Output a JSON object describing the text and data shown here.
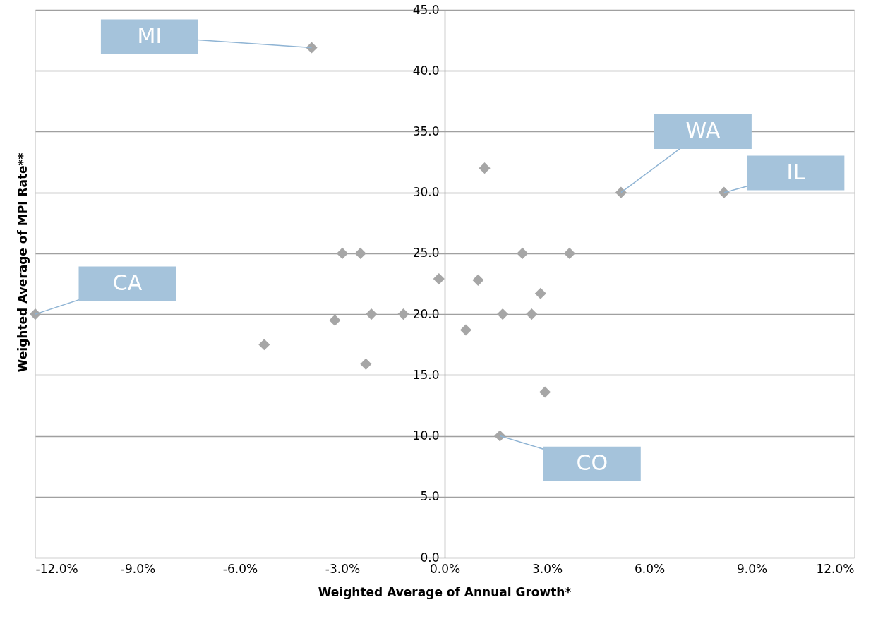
{
  "chart_data": {
    "type": "scatter",
    "xlabel": "Weighted Average of Annual Growth*",
    "ylabel": "Weighted Average of MPI Rate**",
    "x": [
      -3.9,
      -12.0,
      5.17,
      8.19,
      1.62,
      1.17,
      -3.0,
      -2.47,
      2.28,
      3.66,
      -0.17,
      0.98,
      2.81,
      -3.22,
      -2.15,
      -1.21,
      1.7,
      2.55,
      0.62,
      -5.29,
      -2.31,
      2.94
    ],
    "series": [
      {
        "color": "#a6a6a6",
        "values": [
          41.9,
          20.0,
          30.0,
          30.0,
          10.0,
          32.0,
          25.0,
          25.0,
          25.0,
          25.0,
          22.9,
          22.8,
          21.7,
          19.5,
          20.0,
          20.0,
          20.0,
          20.0,
          18.7,
          17.5,
          15.9,
          13.6
        ]
      }
    ],
    "marker": "diamond",
    "grid": "y",
    "xlim": [
      -12,
      12
    ],
    "xticks": [
      {
        "value": -12,
        "label": "-12.0%"
      },
      {
        "value": -9,
        "label": "-9.0%"
      },
      {
        "value": -6,
        "label": "-6.0%"
      },
      {
        "value": -3,
        "label": "-3.0%"
      },
      {
        "value": 0,
        "label": "0.0%"
      },
      {
        "value": 3,
        "label": "3.0%"
      },
      {
        "value": 6,
        "label": "6.0%"
      },
      {
        "value": 9,
        "label": "9.0%"
      },
      {
        "value": 12,
        "label": "12.0%"
      }
    ],
    "ylim": [
      0,
      45
    ],
    "yticks": [
      {
        "value": 0,
        "label": "0.0"
      },
      {
        "value": 5,
        "label": "5.0"
      },
      {
        "value": 10,
        "label": "10.0"
      },
      {
        "value": 15,
        "label": "15.0"
      },
      {
        "value": 20,
        "label": "20.0"
      },
      {
        "value": 25,
        "label": "25.0"
      },
      {
        "value": 30,
        "label": "30.0"
      },
      {
        "value": 35,
        "label": "35.0"
      },
      {
        "value": 40,
        "label": "40.0"
      },
      {
        "value": 45,
        "label": "45.0"
      }
    ],
    "annotations": [
      {
        "text": "MI",
        "x": -3.9,
        "y": 41.9
      },
      {
        "text": "CA",
        "x": -12.0,
        "y": 20.0
      },
      {
        "text": "WA",
        "x": 5.17,
        "y": 30.0
      },
      {
        "text": "IL",
        "x": 8.19,
        "y": 30.0
      },
      {
        "text": "CO",
        "x": 1.62,
        "y": 10.0
      }
    ]
  }
}
